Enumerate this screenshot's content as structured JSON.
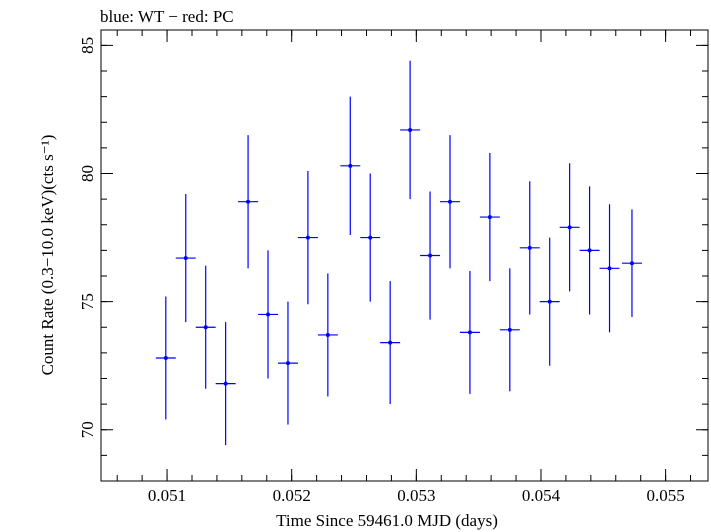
{
  "title": "blue: WT − red: PC",
  "chart_data": {
    "type": "scatter",
    "title": "blue: WT − red: PC",
    "xlabel": "Time Since 59461.0 MJD (days)",
    "ylabel": "Count Rate (0.3−10.0 keV)(cts s⁻¹)",
    "xlim": [
      0.05047,
      0.05534
    ],
    "ylim": [
      68.0,
      85.6
    ],
    "x_ticks": [
      "0.051",
      "0.052",
      "0.053",
      "0.054",
      "0.055"
    ],
    "y_ticks": [
      "70",
      "75",
      "80",
      "85"
    ],
    "grid": false,
    "series": [
      {
        "color": "#0000ff",
        "points": [
          {
            "x": 0.05099,
            "xerr": 8e-05,
            "y": 72.8,
            "yerr": 2.4
          },
          {
            "x": 0.05115,
            "xerr": 8e-05,
            "y": 76.7,
            "yerr": 2.5
          },
          {
            "x": 0.05131,
            "xerr": 8e-05,
            "y": 74.0,
            "yerr": 2.4
          },
          {
            "x": 0.05147,
            "xerr": 8e-05,
            "y": 71.8,
            "yerr": 2.4
          },
          {
            "x": 0.05165,
            "xerr": 8e-05,
            "y": 78.9,
            "yerr": 2.6
          },
          {
            "x": 0.05181,
            "xerr": 8e-05,
            "y": 74.5,
            "yerr": 2.5
          },
          {
            "x": 0.05197,
            "xerr": 8e-05,
            "y": 72.6,
            "yerr": 2.4
          },
          {
            "x": 0.05213,
            "xerr": 8e-05,
            "y": 77.5,
            "yerr": 2.6
          },
          {
            "x": 0.05229,
            "xerr": 8e-05,
            "y": 73.7,
            "yerr": 2.4
          },
          {
            "x": 0.05247,
            "xerr": 8e-05,
            "y": 80.3,
            "yerr": 2.7
          },
          {
            "x": 0.05263,
            "xerr": 8e-05,
            "y": 77.5,
            "yerr": 2.5
          },
          {
            "x": 0.05279,
            "xerr": 8e-05,
            "y": 73.4,
            "yerr": 2.4
          },
          {
            "x": 0.05295,
            "xerr": 8e-05,
            "y": 81.7,
            "yerr": 2.7
          },
          {
            "x": 0.05311,
            "xerr": 8e-05,
            "y": 76.8,
            "yerr": 2.5
          },
          {
            "x": 0.05327,
            "xerr": 8e-05,
            "y": 78.9,
            "yerr": 2.6
          },
          {
            "x": 0.05343,
            "xerr": 8e-05,
            "y": 73.8,
            "yerr": 2.4
          },
          {
            "x": 0.05359,
            "xerr": 8e-05,
            "y": 78.3,
            "yerr": 2.5
          },
          {
            "x": 0.05375,
            "xerr": 8e-05,
            "y": 73.9,
            "yerr": 2.4
          },
          {
            "x": 0.05391,
            "xerr": 8e-05,
            "y": 77.1,
            "yerr": 2.6
          },
          {
            "x": 0.05407,
            "xerr": 8e-05,
            "y": 75.0,
            "yerr": 2.5
          },
          {
            "x": 0.05423,
            "xerr": 8e-05,
            "y": 77.9,
            "yerr": 2.5
          },
          {
            "x": 0.05439,
            "xerr": 8e-05,
            "y": 77.0,
            "yerr": 2.5
          },
          {
            "x": 0.05455,
            "xerr": 8e-05,
            "y": 76.3,
            "yerr": 2.5
          },
          {
            "x": 0.05473,
            "xerr": 8e-05,
            "y": 76.5,
            "yerr": 2.1
          }
        ]
      }
    ]
  }
}
